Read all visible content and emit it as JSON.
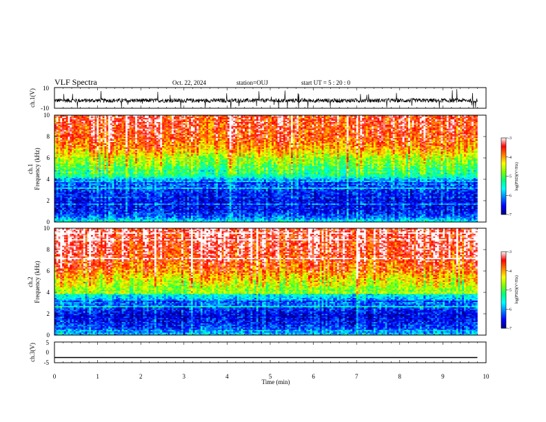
{
  "header": {
    "title": "VLF Spectra",
    "date": "Oct. 22, 2024",
    "station": "station=OUJ",
    "start_ut": "start  UT =   5 : 20 : 0"
  },
  "colors": {
    "scale": [
      "#00007f",
      "#0000ff",
      "#007fff",
      "#00ffff",
      "#00ff7f",
      "#7fff00",
      "#ffff00",
      "#ff7f00",
      "#ff0000",
      "#ffffff"
    ],
    "trace": "#000000"
  },
  "chart_data": [
    {
      "type": "line",
      "name": "ch1-waveform",
      "ylabel": "ch.1(V)",
      "ylim": [
        -10,
        10
      ],
      "yticks": [
        "10",
        "-10"
      ],
      "xlim": [
        0,
        10
      ],
      "x_data_end_min": 9.8,
      "baseline": -2.5,
      "noise_amplitude": 2,
      "spike_amplitude": 10
    },
    {
      "type": "heatmap",
      "name": "ch1-spectrogram",
      "ylabel_line1": "ch.1",
      "ylabel_line2": "Frequency  (kHz)",
      "ylim": [
        0,
        10
      ],
      "yticks": [
        "0",
        "2",
        "4",
        "6",
        "8",
        "10"
      ],
      "xlim": [
        0,
        10
      ],
      "x_data_end_min": 9.8,
      "zlim": [
        -7,
        -3
      ],
      "colorbar_label": "log(PSD)(V²/Hz)",
      "colorbar_ticks": [
        "-3",
        "-4",
        "-5",
        "-6",
        "-7"
      ],
      "profile_khz": [
        0,
        0.5,
        1,
        2,
        3,
        4,
        4.3,
        5,
        6,
        6.5,
        7,
        8,
        10
      ],
      "profile_logpsd": [
        -5.5,
        -6.2,
        -6.5,
        -6.6,
        -6.4,
        -6.0,
        -5.3,
        -5.0,
        -4.6,
        -4.2,
        -3.9,
        -3.6,
        -3.4
      ]
    },
    {
      "type": "heatmap",
      "name": "ch2-spectrogram",
      "ylabel_line1": "ch.2",
      "ylabel_line2": "Frequency  (kHz)",
      "ylim": [
        0,
        10
      ],
      "yticks": [
        "0",
        "2",
        "4",
        "6",
        "8",
        "10"
      ],
      "xlim": [
        0,
        10
      ],
      "x_data_end_min": 9.8,
      "zlim": [
        -7,
        -3
      ],
      "colorbar_label": "log(PSD)(V²/Hz)",
      "colorbar_ticks": [
        "-3",
        "-4",
        "-5",
        "-6",
        "-7"
      ],
      "profile_khz": [
        0,
        0.5,
        1,
        2,
        3,
        3.8,
        4.2,
        5,
        6,
        7,
        8,
        10
      ],
      "profile_logpsd": [
        -5.7,
        -6.3,
        -6.5,
        -6.6,
        -6.2,
        -5.6,
        -4.8,
        -4.4,
        -4.0,
        -3.6,
        -3.4,
        -3.3
      ]
    },
    {
      "type": "line",
      "name": "ch3-waveform",
      "ylabel": "ch.3(V)",
      "ylim": [
        -5,
        5
      ],
      "yticks": [
        "5",
        "0",
        "-5"
      ],
      "xlim": [
        0,
        10
      ],
      "x_data_end_min": 9.8,
      "baseline": -2.5,
      "xlabel": "Time  (min)",
      "xticks": [
        "0",
        "1",
        "2",
        "3",
        "4",
        "5",
        "6",
        "7",
        "8",
        "9",
        "10"
      ]
    }
  ]
}
